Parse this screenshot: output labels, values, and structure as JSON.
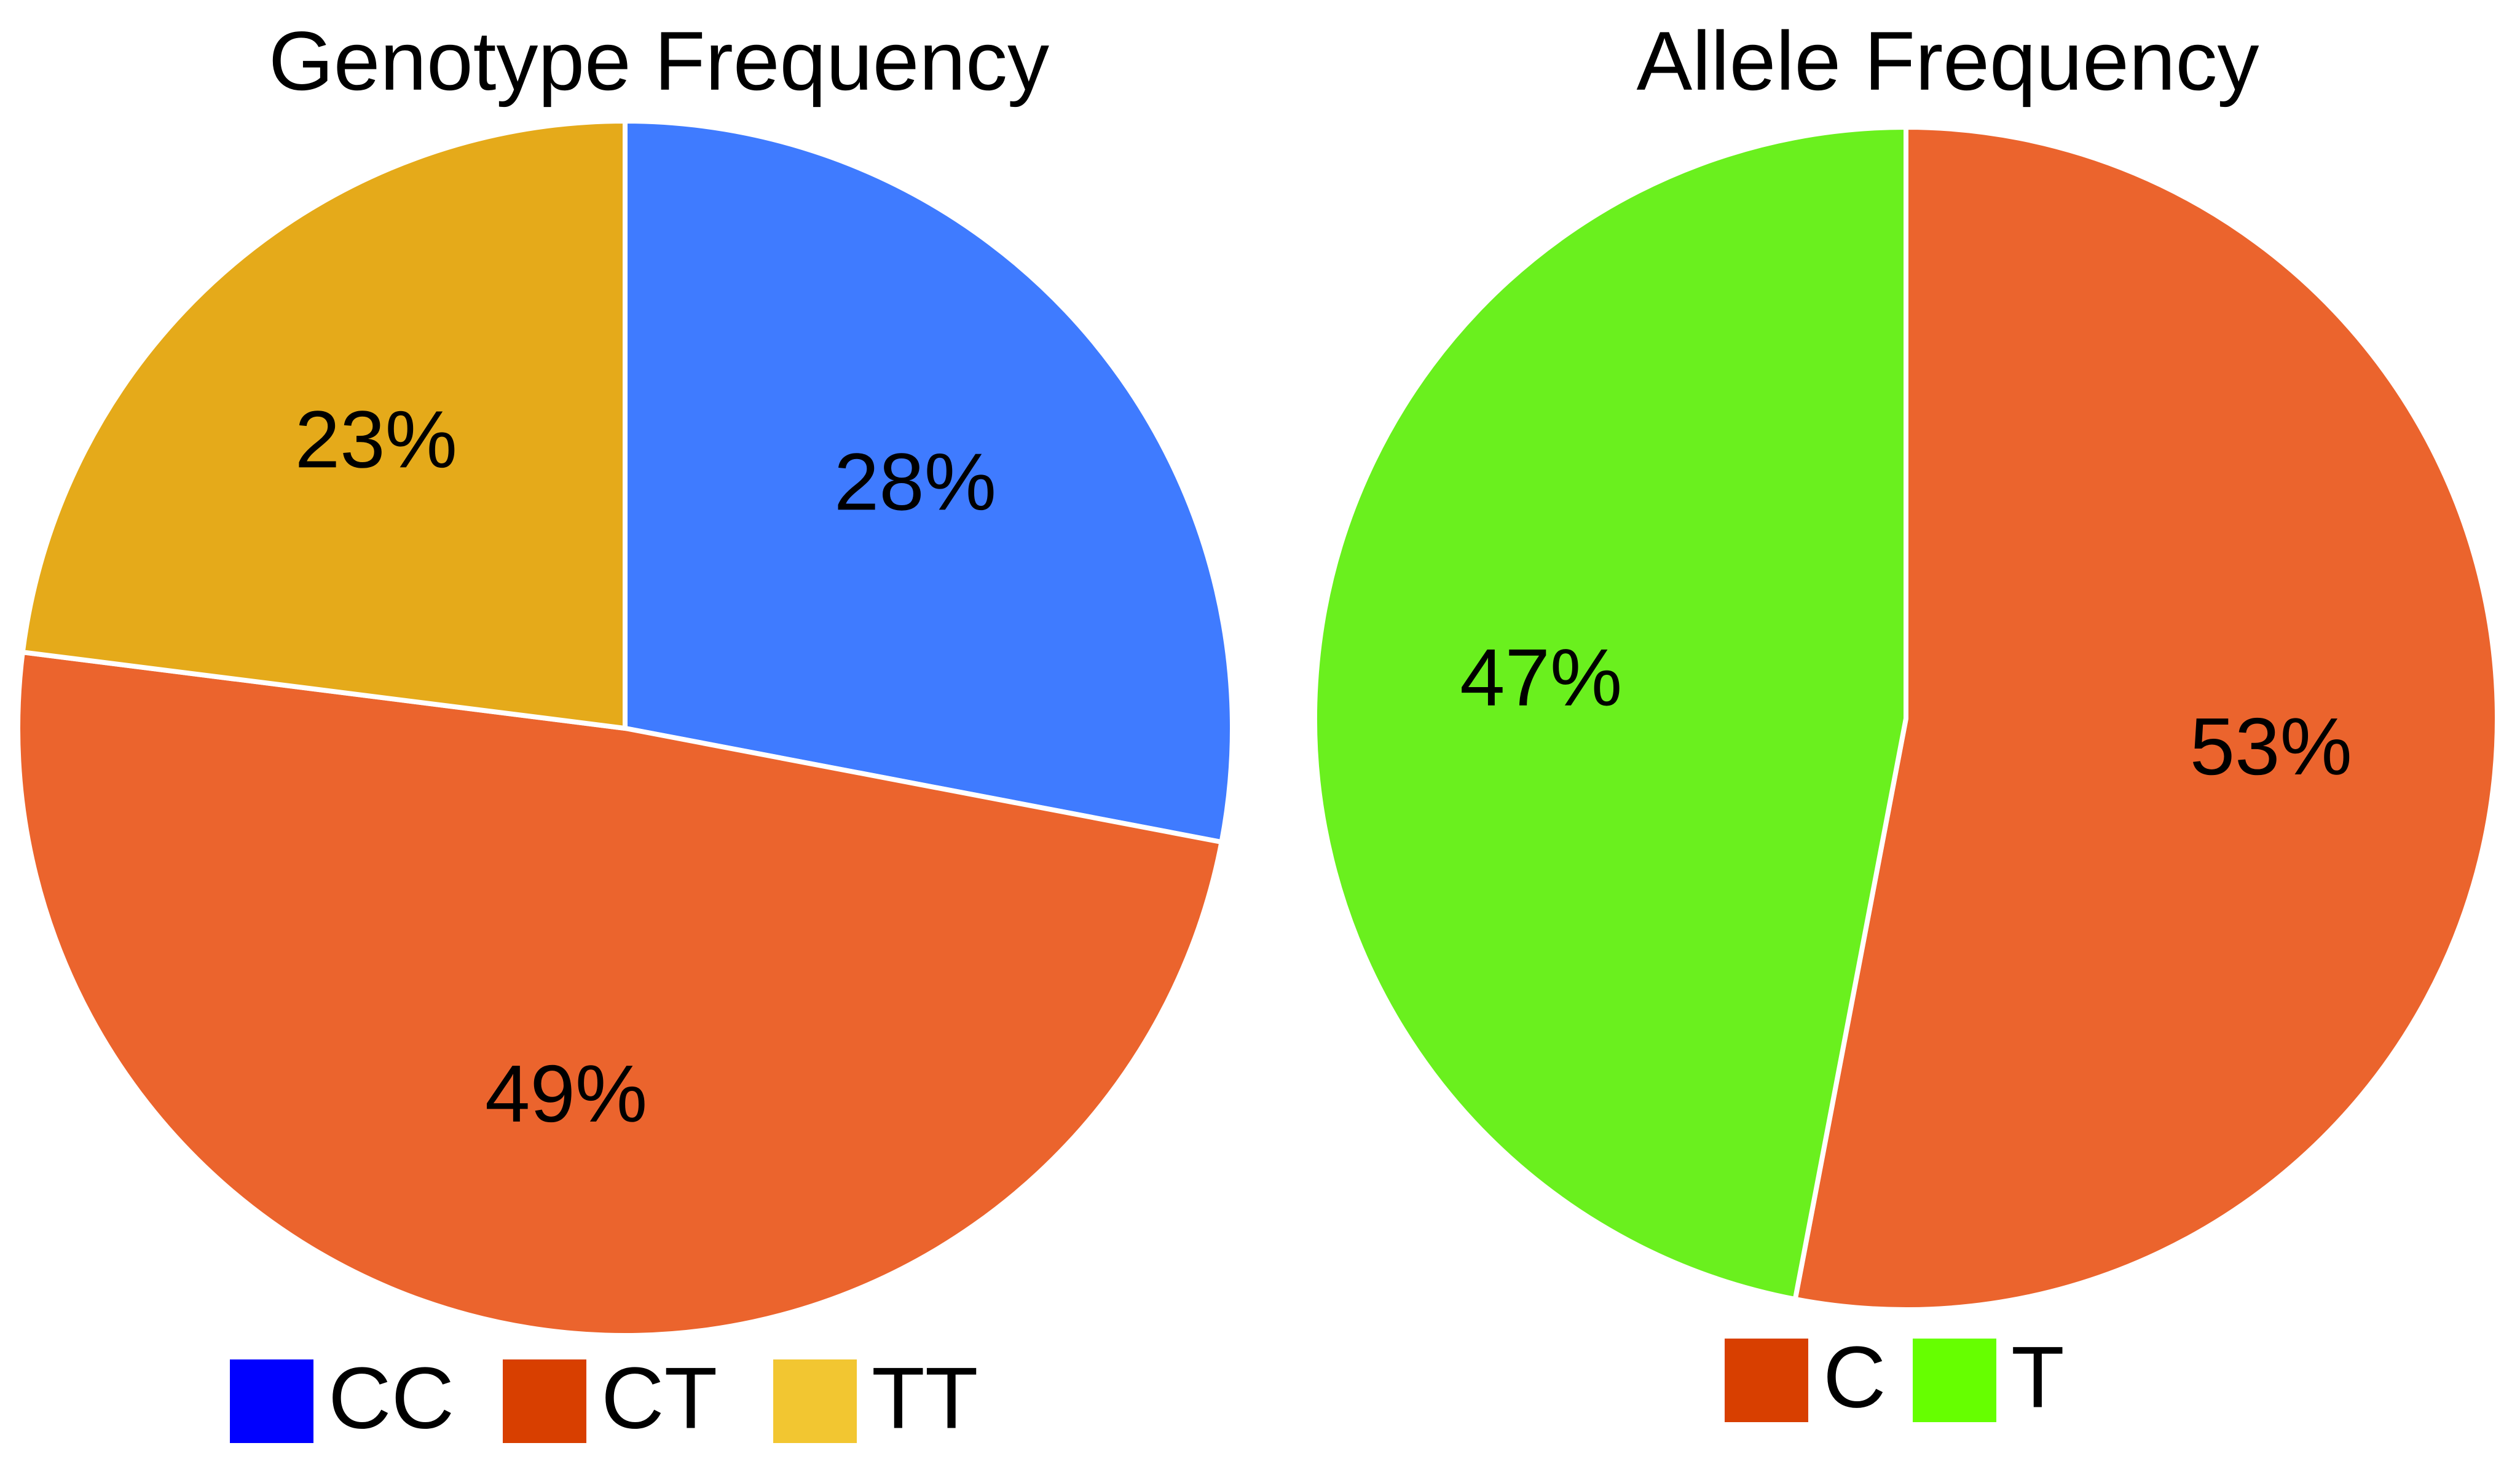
{
  "chart_data": [
    {
      "type": "pie",
      "title": "Genotype Frequency",
      "categories": [
        "CC",
        "CT",
        "TT"
      ],
      "values": [
        28,
        49,
        23
      ],
      "value_labels": [
        "28%",
        "49%",
        "23%"
      ],
      "colors": [
        "#3f7bff",
        "#eb642d",
        "#e5aa1a"
      ],
      "legend_colors": [
        "#0000ff",
        "#d83f00",
        "#f2c631"
      ]
    },
    {
      "type": "pie",
      "title": "Allele Frequency",
      "categories": [
        "C",
        "T"
      ],
      "values": [
        53,
        47
      ],
      "value_labels": [
        "53%",
        "47%"
      ],
      "colors": [
        "#eb642d",
        "#6af01e"
      ],
      "legend_colors": [
        "#d83f00",
        "#66ff00"
      ]
    }
  ]
}
